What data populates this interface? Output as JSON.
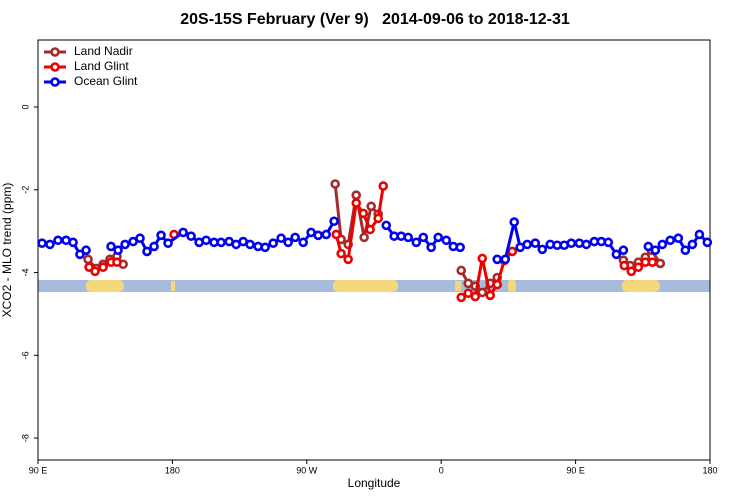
{
  "chart_data": {
    "type": "line",
    "title": "20S-15S February (Ver 9)   2014-09-06 to 2018-12-31",
    "xlabel": "Longitude",
    "ylabel": "XCO2 - MLO trend (ppm)",
    "xlim": [
      90,
      540
    ],
    "ylim": [
      -8.53,
      1.62
    ],
    "xticks": [
      {
        "value": 90,
        "label": "90 E"
      },
      180,
      {
        "value": 270,
        "label": "90 W"
      },
      {
        "value": 360,
        "label": "0"
      },
      {
        "value": 450,
        "label": "90 E"
      },
      {
        "value": 540,
        "label": "180"
      }
    ],
    "yticks": [
      0,
      -2,
      -4,
      -6,
      -8
    ],
    "legend": "top-left",
    "series": [
      {
        "name": "Land Nadir",
        "color": "#a52a2a",
        "x": [
          123.5,
          128.9,
          133.6,
          138.2,
          142.9,
          147.0,
          250,
          289.0,
          293.0,
          297.7,
          303.1,
          308.4,
          313.1,
          317.8,
          390,
          373.4,
          378.1,
          382.8,
          387.5,
          392.8,
          397.5,
          450,
          482.0,
          486.6,
          492.0,
          496.7,
          500.7,
          506.7
        ],
        "values": [
          -3.68,
          -3.9,
          -3.8,
          -3.68,
          -3.61,
          -3.8,
          null,
          -1.86,
          -3.2,
          -3.32,
          -2.13,
          -3.15,
          -2.4,
          -2.59,
          null,
          -3.95,
          -4.26,
          -4.33,
          -4.48,
          -4.26,
          -4.12,
          null,
          -3.7,
          -3.83,
          -3.75,
          -3.63,
          -3.46,
          -3.78
        ]
      },
      {
        "name": "Land Glint",
        "color": "#ee0000",
        "x": [
          124.2,
          128.2,
          133.6,
          138.9,
          142.9,
          160,
          181.1,
          250,
          289.7,
          293.0,
          297.7,
          303.1,
          307.8,
          312.4,
          317.8,
          321.2,
          340,
          373.4,
          378.1,
          382.8,
          387.5,
          392.8,
          397.5,
          402.2,
          407.6,
          450,
          482.6,
          487.3,
          492.0,
          496.7,
          501.4
        ],
        "values": [
          -3.87,
          -3.97,
          -3.87,
          -3.75,
          -3.75,
          null,
          -3.08,
          null,
          -3.08,
          -3.54,
          -3.68,
          -2.32,
          -2.57,
          -2.96,
          -2.69,
          -1.91,
          null,
          -4.6,
          -4.5,
          -4.58,
          -3.66,
          -4.55,
          -4.29,
          -3.71,
          -3.49,
          null,
          -3.83,
          -3.97,
          -3.87,
          -3.75,
          -3.75
        ]
      },
      {
        "name": "Ocean Glint",
        "color": "#0000ee",
        "x": [
          92.7,
          98.0,
          103.4,
          108.8,
          113.5,
          118.1,
          122.2,
          124,
          138.9,
          143.6,
          148.3,
          153.7,
          158.3,
          163.0,
          167.7,
          172.4,
          177.1,
          187.2,
          192.5,
          197.9,
          202.6,
          207.9,
          212.6,
          218.0,
          222.7,
          227.4,
          232.0,
          237.4,
          242.1,
          247.5,
          252.8,
          257.5,
          262.2,
          267.6,
          272.9,
          277.6,
          283.0,
          288.3,
          300,
          323.2,
          328.5,
          333.2,
          337.9,
          343.3,
          348.0,
          353.3,
          358.0,
          363.4,
          368.1,
          372.7,
          380,
          397.5,
          402.9,
          408.9,
          412.9,
          417.6,
          423.0,
          427.7,
          433.0,
          437.7,
          442.4,
          447.1,
          452.5,
          457.2,
          462.5,
          467.2,
          471.9,
          477.3,
          482.0,
          490,
          498.7,
          503.4,
          508.1,
          513.4,
          518.8,
          523.5,
          528.2,
          532.9,
          538.2
        ],
        "values": [
          -3.29,
          -3.32,
          -3.22,
          -3.22,
          -3.27,
          -3.56,
          -3.46,
          null,
          -3.37,
          -3.46,
          -3.32,
          -3.25,
          -3.17,
          -3.49,
          -3.37,
          -3.1,
          -3.29,
          -3.03,
          -3.12,
          -3.27,
          -3.22,
          -3.27,
          -3.27,
          -3.25,
          -3.32,
          -3.25,
          -3.32,
          -3.37,
          -3.39,
          -3.29,
          -3.17,
          -3.27,
          -3.15,
          -3.27,
          -3.03,
          -3.1,
          -3.08,
          -2.76,
          null,
          -2.86,
          -3.12,
          -3.12,
          -3.15,
          -3.27,
          -3.15,
          -3.39,
          -3.15,
          -3.22,
          -3.37,
          -3.39,
          null,
          -3.68,
          -3.68,
          -2.78,
          -3.39,
          -3.32,
          -3.29,
          -3.44,
          -3.32,
          -3.34,
          -3.34,
          -3.29,
          -3.29,
          -3.32,
          -3.25,
          -3.25,
          -3.27,
          -3.56,
          -3.46,
          null,
          -3.37,
          -3.46,
          -3.32,
          -3.22,
          -3.17,
          -3.46,
          -3.32,
          -3.08,
          -3.27
        ]
      }
    ]
  }
}
